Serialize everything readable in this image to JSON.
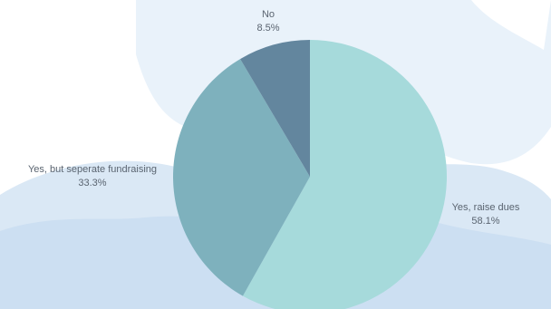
{
  "chart_data": {
    "type": "pie",
    "title": "",
    "start_angle_deg": 0,
    "direction": "clockwise",
    "slices": [
      {
        "label": "Yes, raise dues",
        "value": 58.1,
        "value_label": "58.1%",
        "color": "#a6dadb"
      },
      {
        "label": "Yes, but seperate fundraising",
        "value": 33.3,
        "value_label": "33.3%",
        "color": "#7eb1bd"
      },
      {
        "label": "No",
        "value": 8.5,
        "value_label": "8.5%",
        "color": "#63869e"
      }
    ],
    "legend": "none",
    "labels_outside": true
  },
  "colors": {
    "background": "#ffffff",
    "watercolor_light": "#e9f2fa",
    "watercolor_mid": "#d7e7f5",
    "watercolor_deep": "#bcd4ee",
    "label_text": "#5a6470"
  }
}
